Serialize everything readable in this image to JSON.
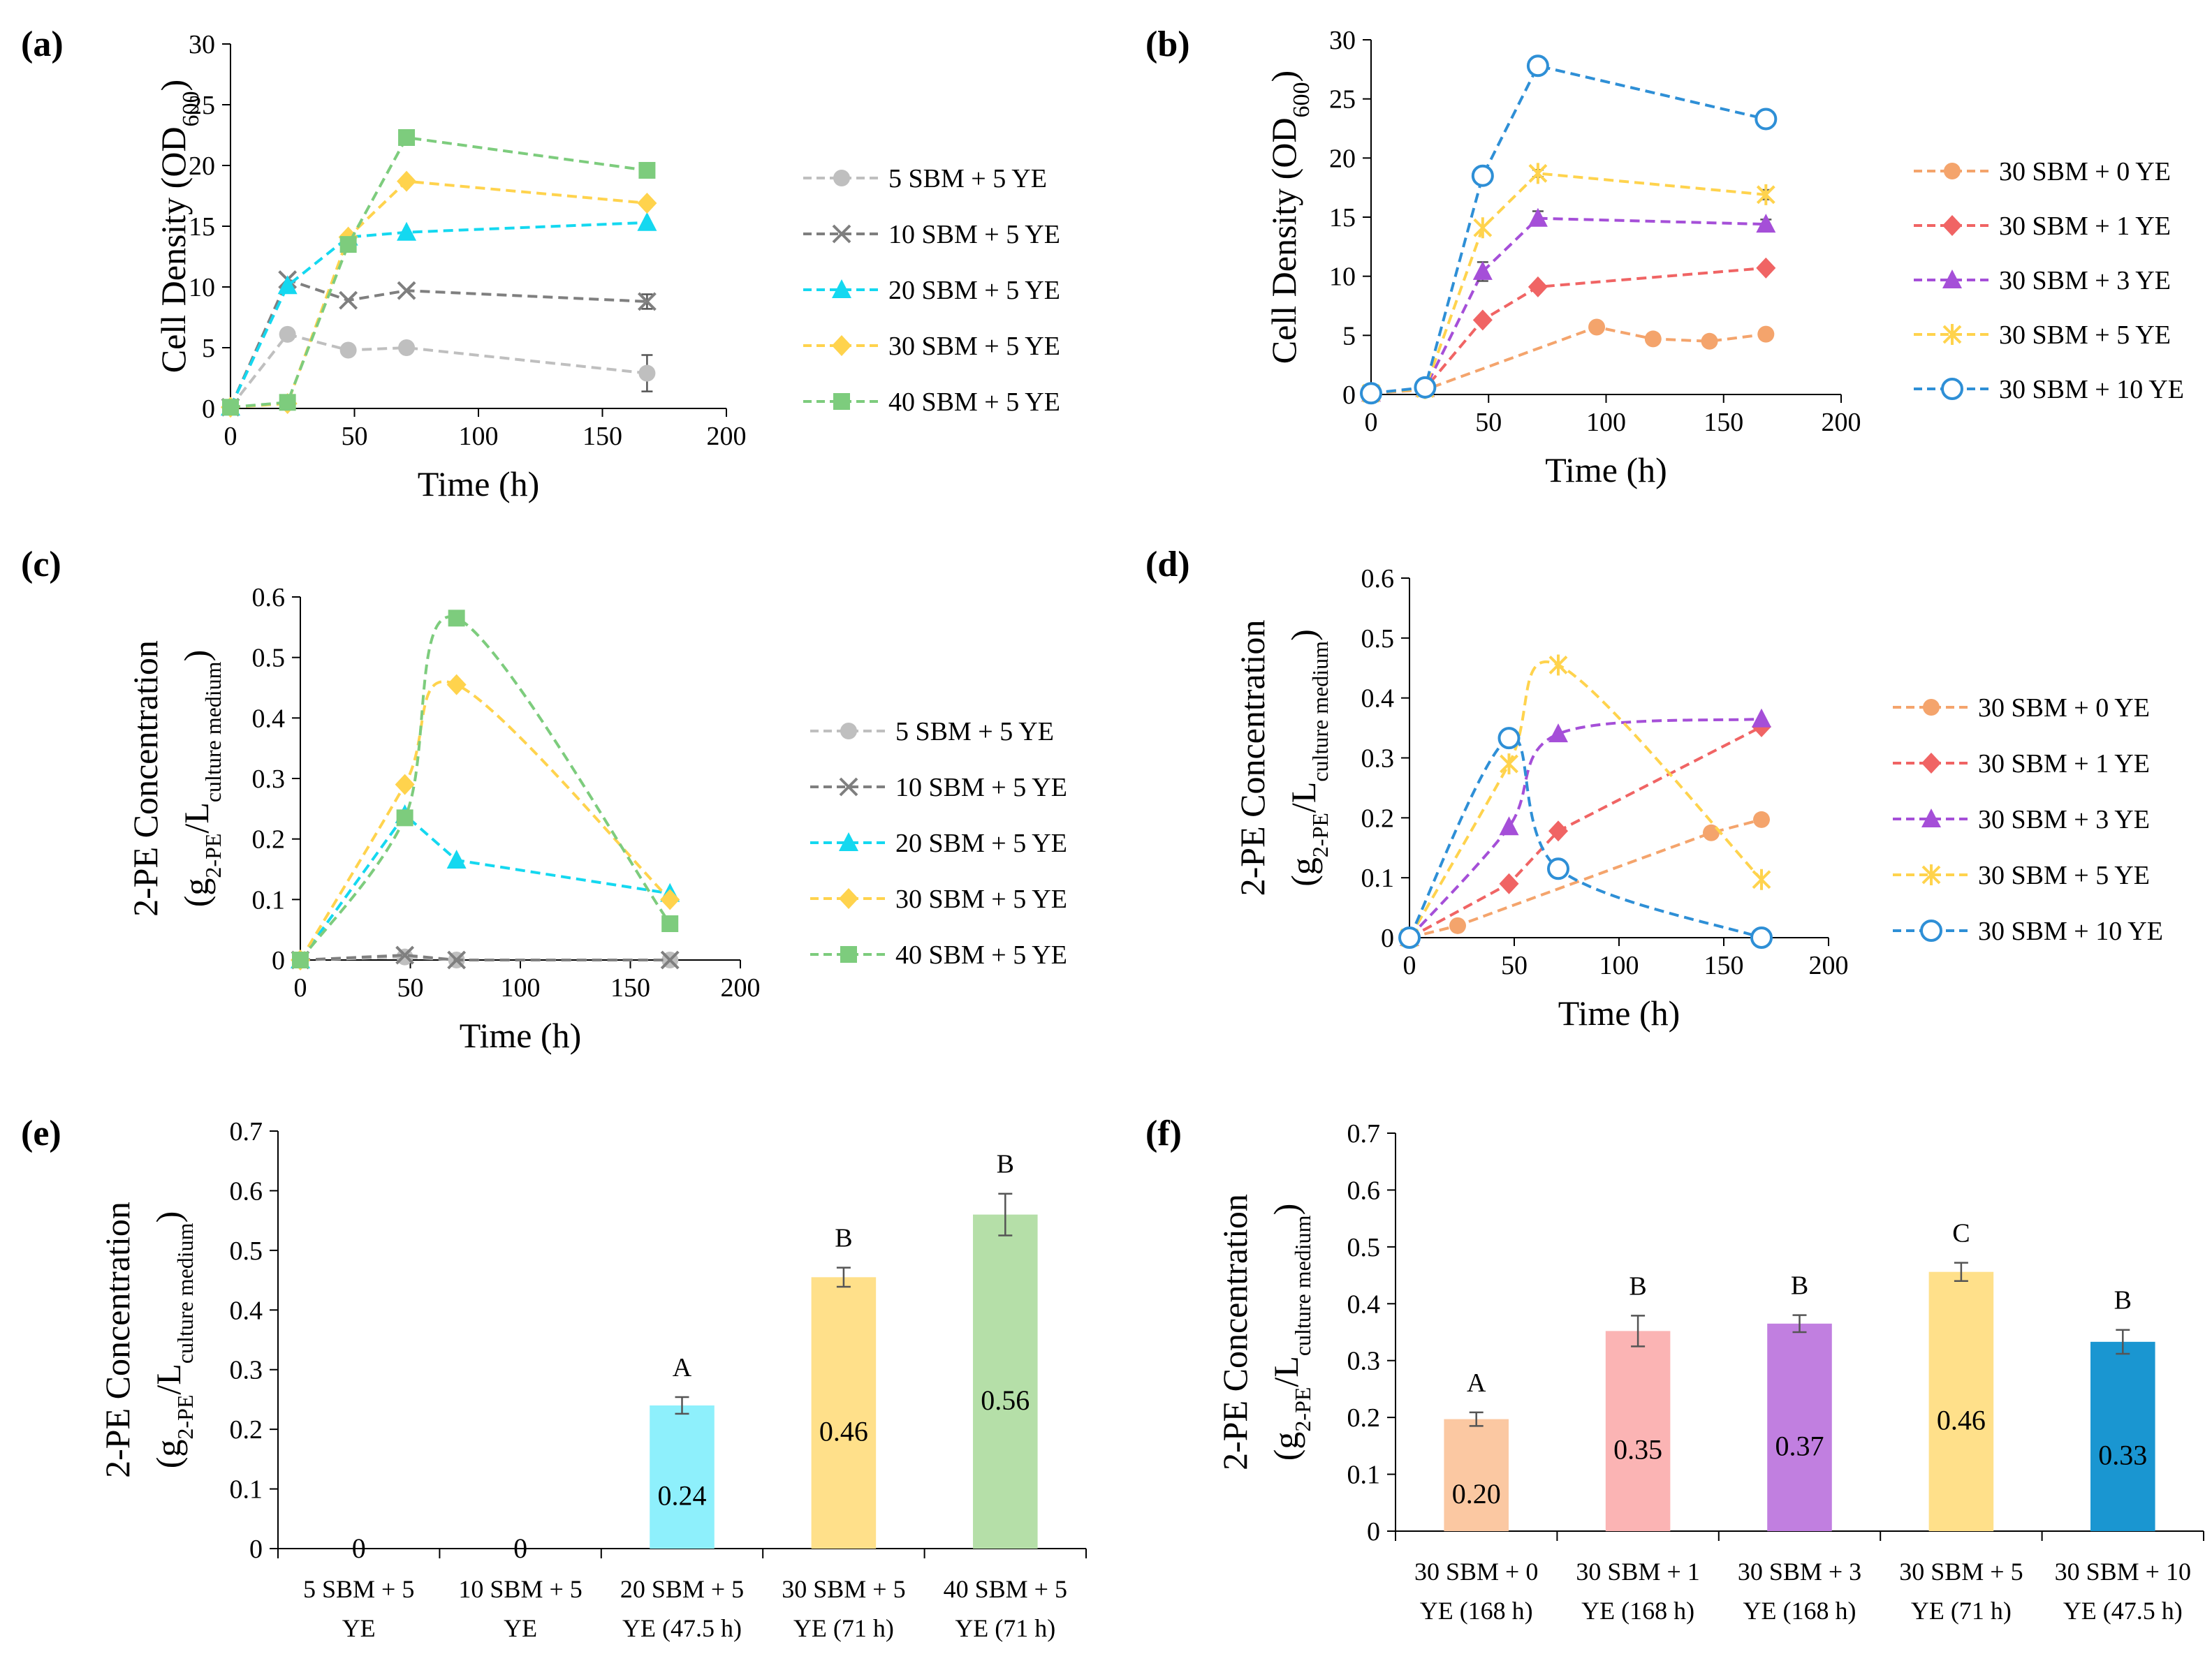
{
  "chart_data": [
    {
      "id": "a",
      "panel_label": "(a)",
      "type": "line",
      "title": "",
      "xlabel": "Time (h)",
      "ylabel_main": "Cell Density (OD",
      "ylabel_sub": "600",
      "ylabel_end": ")",
      "xlim": [
        0,
        200
      ],
      "ylim": [
        0,
        30
      ],
      "xticks": [
        0,
        50,
        100,
        150,
        200
      ],
      "yticks": [
        0,
        5,
        10,
        15,
        20,
        25,
        30
      ],
      "legend_position": "right",
      "series": [
        {
          "name": "5 SBM + 5 YE",
          "color": "#bfbfbf",
          "marker": "circle",
          "x": [
            0,
            23,
            47.5,
            71,
            168
          ],
          "y": [
            0.1,
            6.1,
            4.8,
            5.0,
            2.9
          ],
          "err": [
            0,
            0,
            0,
            0,
            1.5
          ]
        },
        {
          "name": "10 SBM + 5 YE",
          "color": "#7f7f7f",
          "marker": "cross",
          "x": [
            0,
            23,
            47.5,
            71,
            168
          ],
          "y": [
            0.1,
            10.6,
            8.9,
            9.7,
            8.8
          ],
          "err": [
            0,
            0,
            0,
            0,
            0.6
          ]
        },
        {
          "name": "20 SBM + 5 YE",
          "color": "#14d8f0",
          "marker": "triangle",
          "x": [
            0,
            23,
            47.5,
            71,
            168
          ],
          "y": [
            0.1,
            10.1,
            14.1,
            14.5,
            15.3
          ],
          "err": [
            0,
            0,
            0,
            0,
            0
          ]
        },
        {
          "name": "30 SBM + 5 YE",
          "color": "#ffd34d",
          "marker": "diamond",
          "x": [
            0,
            23,
            47.5,
            71,
            168
          ],
          "y": [
            0.1,
            0.4,
            14.1,
            18.7,
            16.9
          ],
          "err": [
            0,
            0,
            0,
            0,
            0
          ]
        },
        {
          "name": "40 SBM + 5 YE",
          "color": "#7dcc7d",
          "marker": "square",
          "x": [
            0,
            23,
            47.5,
            71,
            168
          ],
          "y": [
            0.1,
            0.5,
            13.5,
            22.3,
            19.6
          ],
          "err": [
            0,
            0,
            0,
            0,
            0
          ]
        }
      ]
    },
    {
      "id": "b",
      "panel_label": "(b)",
      "type": "line",
      "title": "",
      "xlabel": "Time (h)",
      "ylabel_main": "Cell Density (OD",
      "ylabel_sub": "600",
      "ylabel_end": ")",
      "xlim": [
        0,
        200
      ],
      "ylim": [
        0,
        30
      ],
      "xticks": [
        0,
        50,
        100,
        150,
        200
      ],
      "yticks": [
        0,
        5,
        10,
        15,
        20,
        25,
        30
      ],
      "legend_position": "right",
      "series": [
        {
          "name": "30 SBM + 0 YE",
          "color": "#f4a46c",
          "marker": "circle",
          "x": [
            0,
            23,
            96,
            120,
            144,
            168
          ],
          "y": [
            0.1,
            0.4,
            5.7,
            4.7,
            4.5,
            5.1
          ],
          "err": [
            0,
            0,
            0,
            0,
            0,
            0
          ]
        },
        {
          "name": "30 SBM + 1 YE",
          "color": "#f06464",
          "marker": "diamond",
          "x": [
            0,
            23,
            47.5,
            71,
            168
          ],
          "y": [
            0.1,
            0.5,
            6.3,
            9.1,
            10.7
          ],
          "err": [
            0,
            0,
            0,
            0,
            0
          ]
        },
        {
          "name": "30 SBM + 3 YE",
          "color": "#a54fd8",
          "marker": "triangle",
          "x": [
            0,
            23,
            47.5,
            71,
            168
          ],
          "y": [
            0.1,
            0.5,
            10.4,
            14.9,
            14.4
          ],
          "err": [
            0,
            0,
            0.8,
            0.6,
            0.4
          ]
        },
        {
          "name": "30 SBM + 5 YE",
          "color": "#ffd34d",
          "marker": "star",
          "x": [
            0,
            23,
            47.5,
            71,
            168
          ],
          "y": [
            0.1,
            0.5,
            14.1,
            18.7,
            16.9
          ],
          "err": [
            0,
            0,
            0,
            0.3,
            0.4
          ]
        },
        {
          "name": "30 SBM + 10 YE",
          "color": "#2e8fd6",
          "marker": "opencircle",
          "x": [
            0,
            23,
            47.5,
            71,
            168
          ],
          "y": [
            0.1,
            0.6,
            18.5,
            27.8,
            23.3
          ],
          "err": [
            0,
            0,
            0,
            0,
            0
          ]
        }
      ]
    },
    {
      "id": "c",
      "panel_label": "(c)",
      "type": "line",
      "title": "",
      "xlabel": "Time (h)",
      "ylabel_main": "2-PE Concentration",
      "ylabel2_pre": "(g",
      "ylabel2_sub1": "2-PE",
      "ylabel2_mid": "/L",
      "ylabel2_sub2": "culture medium",
      "ylabel2_end": ")",
      "xlim": [
        0,
        200
      ],
      "ylim": [
        0,
        0.6
      ],
      "xticks": [
        0,
        50,
        100,
        150,
        200
      ],
      "yticks": [
        0,
        0.1,
        0.2,
        0.3,
        0.4,
        0.5,
        0.6
      ],
      "legend_position": "right",
      "series": [
        {
          "name": "5 SBM + 5 YE",
          "color": "#bfbfbf",
          "marker": "circle",
          "smooth": false,
          "x": [
            0,
            47.5,
            71,
            168
          ],
          "y": [
            0,
            0.005,
            0,
            0
          ],
          "err": [
            0,
            0,
            0,
            0
          ]
        },
        {
          "name": "10 SBM + 5 YE",
          "color": "#7f7f7f",
          "marker": "cross",
          "smooth": false,
          "x": [
            0,
            47.5,
            71,
            168
          ],
          "y": [
            0,
            0.008,
            0,
            0
          ],
          "err": [
            0,
            0,
            0,
            0
          ]
        },
        {
          "name": "20 SBM + 5 YE",
          "color": "#14d8f0",
          "marker": "triangle",
          "smooth": false,
          "x": [
            0,
            47.5,
            71,
            168
          ],
          "y": [
            0,
            0.24,
            0.165,
            0.11
          ],
          "err": [
            0,
            0,
            0,
            0
          ]
        },
        {
          "name": "30 SBM + 5 YE",
          "color": "#ffd34d",
          "marker": "diamond",
          "smooth": true,
          "x": [
            0,
            47.5,
            71,
            168
          ],
          "y": [
            0,
            0.29,
            0.455,
            0.1
          ],
          "err": [
            0,
            0,
            0,
            0
          ]
        },
        {
          "name": "40 SBM + 5 YE",
          "color": "#7dcc7d",
          "marker": "square",
          "smooth": true,
          "x": [
            0,
            47.5,
            71,
            168
          ],
          "y": [
            0,
            0.235,
            0.565,
            0.06
          ],
          "err": [
            0,
            0,
            0,
            0
          ]
        }
      ]
    },
    {
      "id": "d",
      "panel_label": "(d)",
      "type": "line",
      "title": "",
      "xlabel": "Time (h)",
      "ylabel_main": "2-PE Concentration",
      "ylabel2_pre": "(g",
      "ylabel2_sub1": "2-PE",
      "ylabel2_mid": "/L",
      "ylabel2_sub2": "culture medium",
      "ylabel2_end": ")",
      "xlim": [
        0,
        200
      ],
      "ylim": [
        0,
        0.6
      ],
      "xticks": [
        0,
        50,
        100,
        150,
        200
      ],
      "yticks": [
        0,
        0.1,
        0.2,
        0.3,
        0.4,
        0.5,
        0.6
      ],
      "legend_position": "right",
      "series": [
        {
          "name": "30 SBM + 0 YE",
          "color": "#f4a46c",
          "marker": "circle",
          "smooth": false,
          "x": [
            0,
            23,
            144,
            168
          ],
          "y": [
            0,
            0.02,
            0.175,
            0.197
          ],
          "err": [
            0,
            0,
            0,
            0
          ]
        },
        {
          "name": "30 SBM + 1 YE",
          "color": "#f06464",
          "marker": "diamond",
          "smooth": false,
          "x": [
            0,
            47.5,
            71,
            168
          ],
          "y": [
            0,
            0.09,
            0.178,
            0.352
          ],
          "err": [
            0,
            0,
            0,
            0
          ]
        },
        {
          "name": "30 SBM + 3 YE",
          "color": "#a54fd8",
          "marker": "triangle",
          "smooth": true,
          "x": [
            0,
            47.5,
            71,
            168
          ],
          "y": [
            0,
            0.185,
            0.34,
            0.365
          ],
          "err": [
            0,
            0,
            0,
            0
          ]
        },
        {
          "name": "30 SBM + 5 YE",
          "color": "#ffd34d",
          "marker": "star",
          "smooth": true,
          "x": [
            0,
            47.5,
            71,
            168
          ],
          "y": [
            0,
            0.29,
            0.455,
            0.097
          ],
          "err": [
            0,
            0,
            0,
            0
          ]
        },
        {
          "name": "30 SBM + 10 YE",
          "color": "#2e8fd6",
          "marker": "opencircle",
          "smooth": true,
          "x": [
            0,
            47.5,
            71,
            168
          ],
          "y": [
            0,
            0.333,
            0.115,
            0
          ],
          "err": [
            0,
            0,
            0,
            0
          ]
        }
      ]
    },
    {
      "id": "e",
      "panel_label": "(e)",
      "type": "bar",
      "title": "",
      "xlabel": "",
      "ylabel_main": "2-PE Concentration",
      "ylabel2_pre": "(g",
      "ylabel2_sub1": "2-PE",
      "ylabel2_mid": "/L",
      "ylabel2_sub2": "culture medium",
      "ylabel2_end": ")",
      "ylim": [
        0,
        0.7
      ],
      "yticks": [
        0,
        0.1,
        0.2,
        0.3,
        0.4,
        0.5,
        0.6,
        0.7
      ],
      "categories": [
        [
          "5 SBM + 5",
          "YE"
        ],
        [
          "10 SBM + 5",
          "YE"
        ],
        [
          "20 SBM + 5",
          "YE (47.5 h)"
        ],
        [
          "30 SBM + 5",
          "YE (71 h)"
        ],
        [
          "40 SBM + 5",
          "YE (71 h)"
        ]
      ],
      "values": [
        0,
        0,
        0.24,
        0.455,
        0.56
      ],
      "errors": [
        0,
        0,
        0.014,
        0.016,
        0.035
      ],
      "value_labels": [
        "0",
        "0",
        "0.24",
        "0.46",
        "0.56"
      ],
      "letters": [
        "",
        "",
        "A",
        "B",
        "B"
      ],
      "colors": [
        "#8ef0fc",
        "#8ef0fc",
        "#8ef0fc",
        "#ffe08a",
        "#b5dfa8"
      ]
    },
    {
      "id": "f",
      "panel_label": "(f)",
      "type": "bar",
      "title": "",
      "xlabel": "",
      "ylabel_main": "2-PE Concentration",
      "ylabel2_pre": "(g",
      "ylabel2_sub1": "2-PE",
      "ylabel2_mid": "/L",
      "ylabel2_sub2": "culture medium",
      "ylabel2_end": ")",
      "ylim": [
        0,
        0.7
      ],
      "yticks": [
        0,
        0.1,
        0.2,
        0.3,
        0.4,
        0.5,
        0.6,
        0.7
      ],
      "categories": [
        [
          "30 SBM + 0",
          "YE (168 h)"
        ],
        [
          "30 SBM + 1",
          "YE (168 h)"
        ],
        [
          "30 SBM + 3",
          "YE (168 h)"
        ],
        [
          "30 SBM + 5",
          "YE (71 h)"
        ],
        [
          "30 SBM + 10",
          "YE (47.5 h)"
        ]
      ],
      "values": [
        0.197,
        0.352,
        0.365,
        0.456,
        0.333
      ],
      "errors": [
        0.012,
        0.027,
        0.015,
        0.016,
        0.021
      ],
      "value_labels": [
        "0.20",
        "0.35",
        "0.37",
        "0.46",
        "0.33"
      ],
      "letters": [
        "A",
        "B",
        "B",
        "C",
        "B"
      ],
      "colors": [
        "#fbc8a2",
        "#fbb4b4",
        "#c17fe0",
        "#ffe08a",
        "#1a96d1"
      ]
    }
  ]
}
